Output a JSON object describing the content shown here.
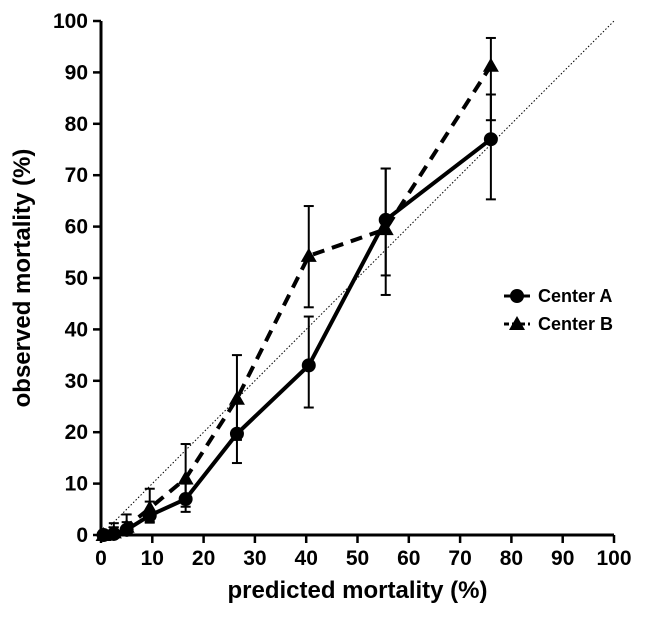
{
  "chart_data": {
    "type": "line",
    "title": "",
    "xlabel": "predicted mortality (%)",
    "ylabel": "observed mortality (%)",
    "xlim": [
      0,
      100
    ],
    "ylim": [
      0,
      100
    ],
    "xticks": [
      0,
      10,
      20,
      30,
      40,
      50,
      60,
      70,
      80,
      90,
      100
    ],
    "yticks": [
      0,
      10,
      20,
      30,
      40,
      50,
      60,
      70,
      80,
      90,
      100
    ],
    "grid": false,
    "legend_position": "right",
    "reference_line": {
      "style": "dotted",
      "from": [
        0,
        0
      ],
      "to": [
        100,
        100
      ]
    },
    "series": [
      {
        "name": "Center A",
        "marker": "circle",
        "line_style": "solid",
        "color": "#000000",
        "points": [
          {
            "x": 0.5,
            "y": 0,
            "ylo": 0,
            "yhi": 0.5
          },
          {
            "x": 2.5,
            "y": 0.2,
            "ylo": 0,
            "yhi": 1.5
          },
          {
            "x": 5,
            "y": 1,
            "ylo": 0.3,
            "yhi": 2.5
          },
          {
            "x": 9.5,
            "y": 3.8,
            "ylo": 2.4,
            "yhi": 6.5
          },
          {
            "x": 16.5,
            "y": 7,
            "ylo": 4.5,
            "yhi": 10
          },
          {
            "x": 26.5,
            "y": 19.7,
            "ylo": 14,
            "yhi": 26
          },
          {
            "x": 40.5,
            "y": 33,
            "ylo": 24.8,
            "yhi": 42.5
          },
          {
            "x": 55.5,
            "y": 61.3,
            "ylo": 50.5,
            "yhi": 71.3
          },
          {
            "x": 76,
            "y": 77,
            "ylo": 65.3,
            "yhi": 85.7
          }
        ]
      },
      {
        "name": "Center B",
        "marker": "triangle",
        "line_style": "dashed",
        "color": "#000000",
        "points": [
          {
            "x": 0.5,
            "y": 0,
            "ylo": 0,
            "yhi": 0.8
          },
          {
            "x": 2.5,
            "y": 0.5,
            "ylo": 0,
            "yhi": 2.3
          },
          {
            "x": 5,
            "y": 1.6,
            "ylo": 0.5,
            "yhi": 4
          },
          {
            "x": 9.5,
            "y": 5.2,
            "ylo": 2.6,
            "yhi": 9
          },
          {
            "x": 16.5,
            "y": 11,
            "ylo": 5.5,
            "yhi": 17.7
          },
          {
            "x": 26.5,
            "y": 26.5,
            "ylo": 18.5,
            "yhi": 35
          },
          {
            "x": 40.5,
            "y": 54.3,
            "ylo": 44.3,
            "yhi": 64
          },
          {
            "x": 55.5,
            "y": 59.5,
            "ylo": 46.7,
            "yhi": 71.3
          },
          {
            "x": 76,
            "y": 91.3,
            "ylo": 80.7,
            "yhi": 96.7
          }
        ]
      }
    ]
  }
}
